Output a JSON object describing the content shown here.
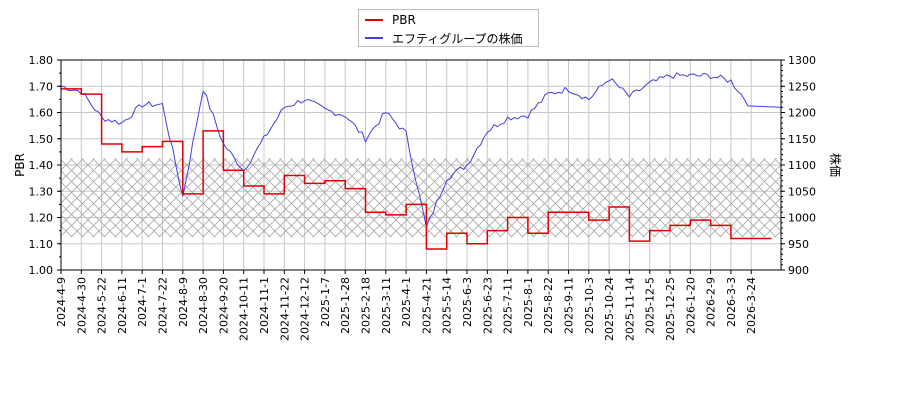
{
  "legend": {
    "items": [
      {
        "label": "PBR",
        "color": "#e00000"
      },
      {
        "label": "エフティグループの株価",
        "color": "#4040e0"
      }
    ]
  },
  "axes": {
    "left_title": "PBR",
    "right_title": "株価",
    "left_ticks": [
      "1.00",
      "1.10",
      "1.20",
      "1.30",
      "1.40",
      "1.50",
      "1.60",
      "1.70",
      "1.80"
    ],
    "right_ticks": [
      "900",
      "950",
      "1000",
      "1050",
      "1100",
      "1150",
      "1200",
      "1250",
      "1300"
    ],
    "x_ticks": [
      "2024-4-9",
      "2024-4-30",
      "2024-5-22",
      "2024-6-11",
      "2024-7-1",
      "2024-7-22",
      "2024-8-9",
      "2024-8-30",
      "2024-9-20",
      "2024-10-11",
      "2024-11-1",
      "2024-11-22",
      "2024-12-12",
      "2025-1-7",
      "2025-1-28",
      "2025-2-18",
      "2025-3-11",
      "2025-4-1",
      "2025-4-21",
      "2025-5-14",
      "2025-6-3",
      "2025-6-23",
      "2025-7-11",
      "2025-8-1",
      "2025-8-22",
      "2025-9-11",
      "2025-10-3",
      "2025-10-24",
      "2025-11-14",
      "2025-12-5",
      "2025-12-25",
      "2026-1-20",
      "2026-2-9",
      "2026-3-3",
      "2026-3-24"
    ]
  },
  "chart_data": {
    "type": "line",
    "title": "",
    "xlabel": "",
    "ylabel": "PBR",
    "ylabel_right": "株価",
    "ylim": [
      1.0,
      1.8
    ],
    "ylim_right": [
      900,
      1300
    ],
    "grid": true,
    "legend_position": "top center",
    "shaded_band": {
      "axis": "left",
      "from": 1.125,
      "to": 1.425,
      "style": "cross-hatch"
    },
    "x": [
      "2024-4-9",
      "2024-4-30",
      "2024-5-22",
      "2024-6-11",
      "2024-7-1",
      "2024-7-22",
      "2024-8-9",
      "2024-8-30",
      "2024-9-20",
      "2024-10-11",
      "2024-11-1",
      "2024-11-22",
      "2024-12-12",
      "2025-1-7",
      "2025-1-28",
      "2025-2-18",
      "2025-3-11",
      "2025-4-1",
      "2025-4-21",
      "2025-5-14",
      "2025-6-3",
      "2025-6-23",
      "2025-7-11",
      "2025-8-1",
      "2025-8-22",
      "2025-9-11",
      "2025-10-3",
      "2025-10-24",
      "2025-11-14",
      "2025-12-5",
      "2025-12-25",
      "2026-1-20",
      "2026-2-9",
      "2026-3-3",
      "2026-3-24"
    ],
    "series": [
      {
        "name": "PBR",
        "axis": "left",
        "color": "#e00000",
        "values": [
          1.69,
          1.67,
          1.48,
          1.45,
          1.47,
          1.49,
          1.29,
          1.53,
          1.38,
          1.32,
          1.29,
          1.36,
          1.33,
          1.34,
          1.31,
          1.22,
          1.21,
          1.25,
          1.08,
          1.14,
          1.1,
          1.15,
          1.2,
          1.14,
          1.22,
          1.22,
          1.19,
          1.24,
          1.11,
          1.15,
          1.17,
          1.19,
          1.17,
          1.12,
          1.12
        ]
      },
      {
        "name": "エフティグループの株価",
        "axis": "right",
        "color": "#4040e0",
        "values": [
          1250,
          1240,
          1190,
          1180,
          1215,
          1215,
          1040,
          1245,
          1140,
          1090,
          1150,
          1210,
          1225,
          1205,
          1195,
          1150,
          1200,
          1160,
          980,
          1075,
          1100,
          1165,
          1190,
          1195,
          1235,
          1245,
          1225,
          1265,
          1230,
          1255,
          1270,
          1270,
          1270,
          1260,
          1210
        ]
      }
    ]
  }
}
